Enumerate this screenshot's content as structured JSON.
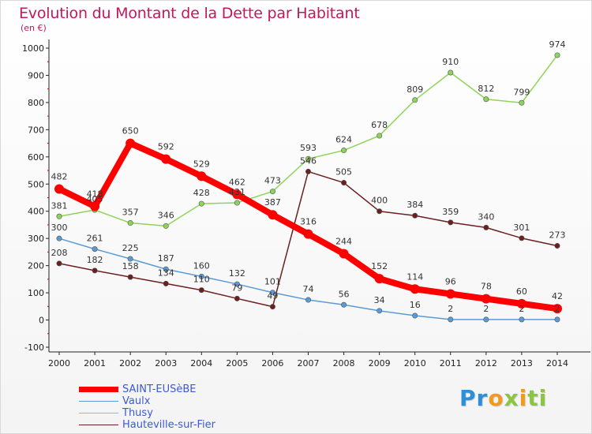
{
  "chart_data": {
    "type": "line",
    "title": "Evolution du Montant de la Dette par Habitant",
    "subtitle": "(en €)",
    "x": [
      "2000",
      "2001",
      "2002",
      "2003",
      "2004",
      "2005",
      "2006",
      "2007",
      "2008",
      "2009",
      "2010",
      "2011",
      "2012",
      "2013",
      "2014"
    ],
    "ylim": [
      -100,
      1000
    ],
    "yticks": [
      -100,
      0,
      100,
      200,
      300,
      400,
      500,
      600,
      700,
      800,
      900,
      1000
    ],
    "series": [
      {
        "name": "Hauteville-sur-Fier",
        "color": "#6b1f1f",
        "values": [
          208,
          182,
          158,
          134,
          110,
          79,
          49,
          546,
          505,
          400,
          384,
          359,
          340,
          301,
          273
        ]
      },
      {
        "name": "Thusy",
        "color": "#8fd45a",
        "values": [
          381,
          405,
          357,
          346,
          428,
          431,
          473,
          593,
          624,
          678,
          809,
          910,
          812,
          799,
          974
        ]
      },
      {
        "name": "Vaulx",
        "color": "#5b9bd5",
        "values": [
          300,
          261,
          225,
          187,
          160,
          132,
          101,
          74,
          56,
          34,
          16,
          2,
          2,
          2,
          2
        ]
      },
      {
        "name": "SAINT-EUSèBE",
        "color": "#ff0000",
        "values": [
          482,
          418,
          650,
          592,
          529,
          462,
          387,
          316,
          244,
          152,
          114,
          96,
          78,
          60,
          42
        ]
      }
    ],
    "data_labels": {
      "SAINT-EUSèBE": [
        "482",
        "418",
        "650",
        "592",
        "529",
        "462",
        "387",
        "316",
        "244",
        "152",
        "114",
        "96",
        "78",
        "60",
        "42"
      ],
      "Vaulx": [
        "300",
        "261",
        "225",
        "187",
        "160",
        "132",
        "101",
        "74",
        "56",
        "34",
        "16",
        "2",
        "2",
        "2",
        "2"
      ],
      "Thusy": [
        "381",
        "405",
        "357",
        "346",
        "428",
        "431",
        "473",
        "593",
        "624",
        "678",
        "809",
        "910",
        "812",
        "799",
        "974"
      ],
      "Hauteville-sur-Fier": [
        "208",
        "182",
        "158",
        "134",
        "110",
        "79",
        "49",
        "546",
        "505",
        "400",
        "384",
        "359",
        "340",
        "301",
        "273"
      ]
    },
    "grid": false,
    "legend_position": "bottom-left"
  },
  "legend": {
    "items": [
      {
        "label": "SAINT-EUSèBE",
        "color": "#ff0000"
      },
      {
        "label": "Vaulx",
        "color": "#5b9bd5"
      },
      {
        "label": "Thusy",
        "color": "#8fd45a"
      },
      {
        "label": "Hauteville-sur-Fier",
        "color": "#6b1f1f"
      }
    ]
  },
  "logo": {
    "letters": [
      "P",
      "r",
      "o",
      "x",
      "i",
      "t",
      "i"
    ],
    "colors": [
      "#2e8fd8",
      "#2e8fd8",
      "#f39a1c",
      "#8cc63f",
      "#f39a1c",
      "#8cc63f",
      "#8cc63f"
    ]
  }
}
